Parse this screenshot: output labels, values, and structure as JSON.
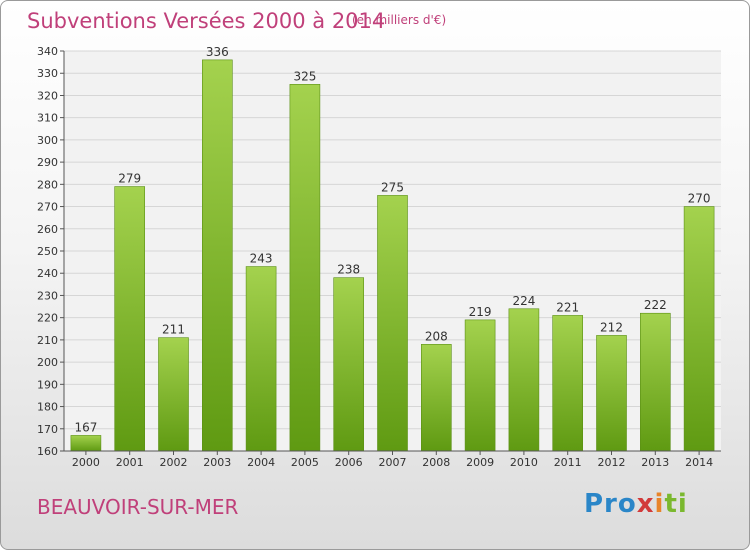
{
  "header": {
    "title": "Subventions Versées 2000 à 2014",
    "unit": "(en milliers d'€)"
  },
  "footer": {
    "commune": "BEAUVOIR-SUR-MER",
    "logo_text": "Proxiti"
  },
  "colors": {
    "title": "#c0407a",
    "bar_top": "#a4d24e",
    "bar_bottom": "#5f9a12"
  },
  "chart_data": {
    "type": "bar",
    "title": "Subventions Versées 2000 à 2014",
    "subtitle": "(en milliers d'€)",
    "categories": [
      "2000",
      "2001",
      "2002",
      "2003",
      "2004",
      "2005",
      "2006",
      "2007",
      "2008",
      "2009",
      "2010",
      "2011",
      "2012",
      "2013",
      "2014"
    ],
    "values": [
      167,
      279,
      211,
      336,
      243,
      325,
      238,
      275,
      208,
      219,
      224,
      221,
      212,
      222,
      270
    ],
    "ylim": [
      160,
      340
    ],
    "yticks": [
      160,
      170,
      180,
      190,
      200,
      210,
      220,
      230,
      240,
      250,
      260,
      270,
      280,
      290,
      300,
      310,
      320,
      330,
      340
    ],
    "grid": true,
    "legend": "none"
  }
}
